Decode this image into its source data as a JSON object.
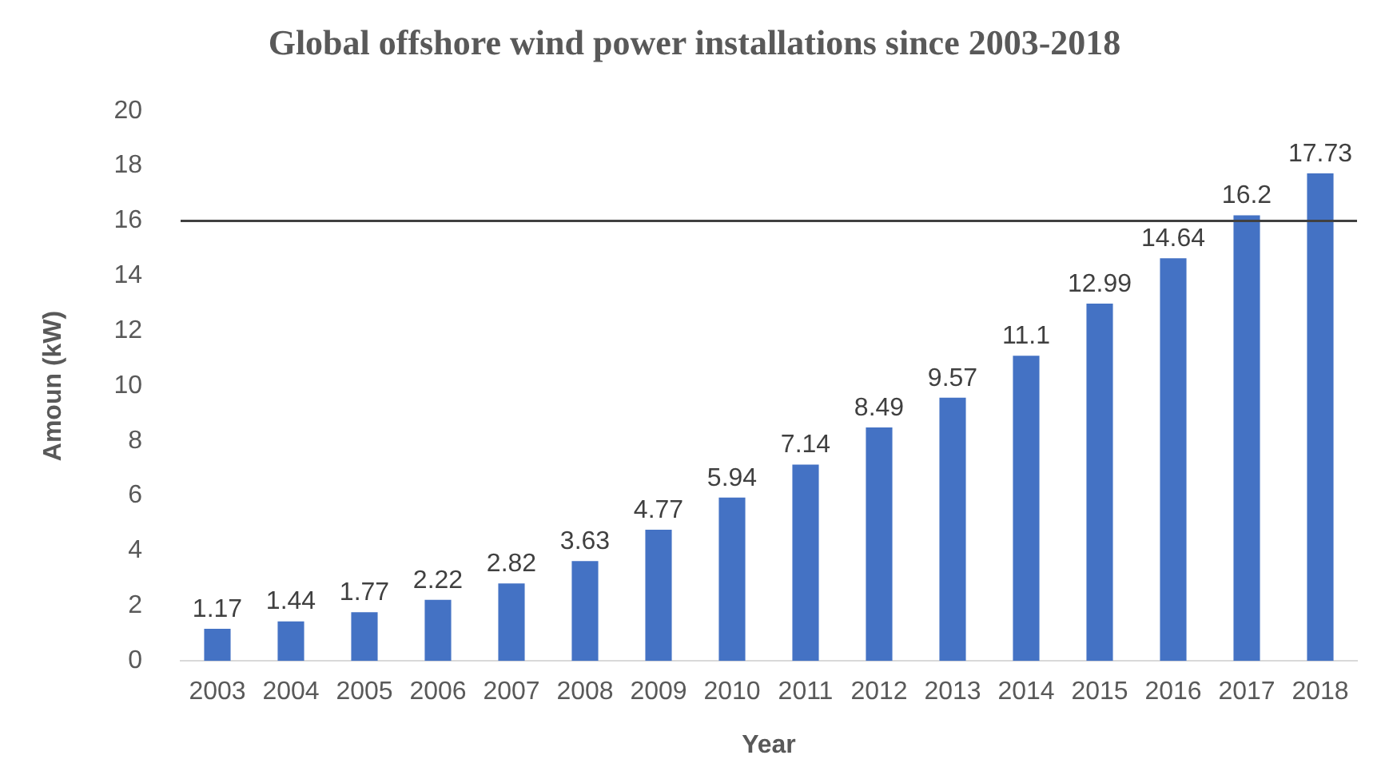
{
  "chart_data": {
    "type": "bar",
    "title": "Global offshore wind power installations since 2003-2018",
    "xlabel": "Year",
    "ylabel": "Amoun (kW)",
    "categories": [
      "2003",
      "2004",
      "2005",
      "2006",
      "2007",
      "2008",
      "2009",
      "2010",
      "2011",
      "2012",
      "2013",
      "2014",
      "2015",
      "2016",
      "2017",
      "2018"
    ],
    "values": [
      1.17,
      1.44,
      1.77,
      2.22,
      2.82,
      3.63,
      4.77,
      5.94,
      7.14,
      8.49,
      9.57,
      11.1,
      12.99,
      14.64,
      16.2,
      17.73
    ],
    "color": "#4472c4",
    "ylim": [
      0,
      20
    ],
    "yticks": [
      0,
      2,
      4,
      6,
      8,
      10,
      12,
      14,
      16,
      18,
      20
    ],
    "grid": false,
    "legend": false,
    "data_labels": true,
    "ref_lines": [
      {
        "axis": "y",
        "value": 16,
        "color": "#404040"
      }
    ]
  }
}
